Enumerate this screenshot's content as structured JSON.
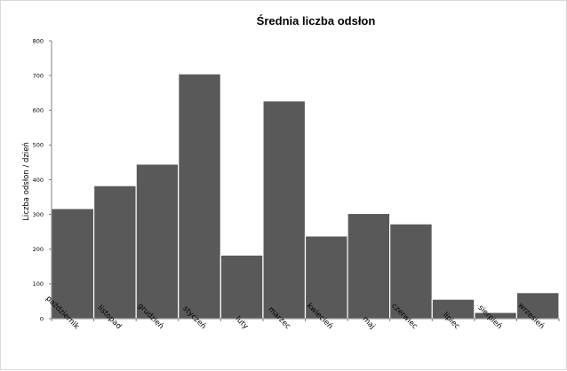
{
  "chart_data": {
    "type": "bar",
    "title": "Średnia liczba odsłon",
    "xlabel": "",
    "ylabel": "Liczba odsłon / dzień",
    "ylim": [
      0,
      800
    ],
    "yticks": [
      0,
      100,
      200,
      300,
      400,
      500,
      600,
      700,
      800
    ],
    "grid": false,
    "legend": "none",
    "bar_color": "#595959",
    "categories": [
      "październik",
      "listopad",
      "grudzień",
      "styczeń",
      "luty",
      "marzec",
      "kwiecień",
      "maj",
      "czerwiec",
      "lipiec",
      "sierpień",
      "wrzesień"
    ],
    "values": [
      317,
      383,
      445,
      705,
      183,
      627,
      238,
      303,
      273,
      56,
      18,
      75
    ]
  }
}
